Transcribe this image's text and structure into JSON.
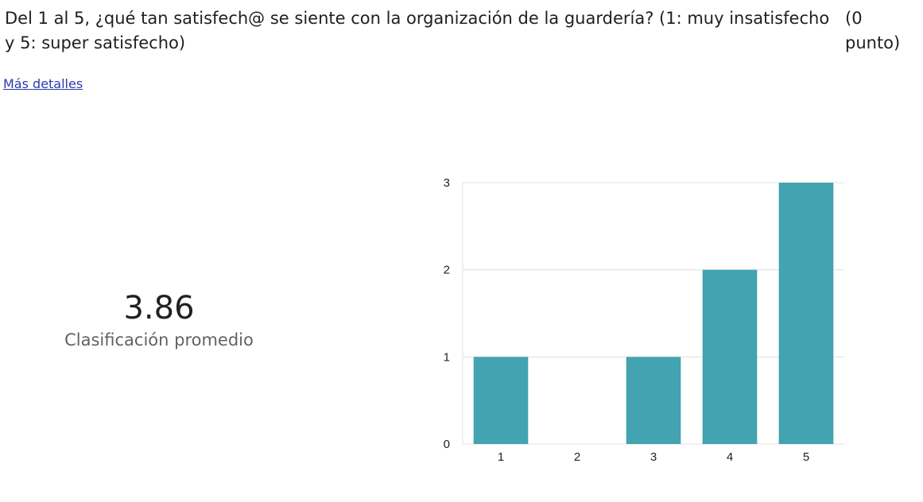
{
  "question": {
    "text": "Del 1 al 5, ¿qué tan satisfech@ se siente con la organización de la guardería? (1: muy insatisfecho y 5: super satisfecho)",
    "points": "(0 punto)"
  },
  "details_link": "Más detalles",
  "summary": {
    "average": "3.86",
    "label": "Clasificación promedio"
  },
  "colors": {
    "bar": "#43a3b0",
    "link": "#2a3ab0",
    "grid": "#e0e0e0"
  },
  "chart_data": {
    "type": "bar",
    "categories": [
      "1",
      "2",
      "3",
      "4",
      "5"
    ],
    "values": [
      1,
      0,
      1,
      2,
      3
    ],
    "ylim": [
      0,
      3
    ],
    "yticks": [
      "0",
      "1",
      "2",
      "3"
    ],
    "grid": true,
    "legend": "none"
  }
}
